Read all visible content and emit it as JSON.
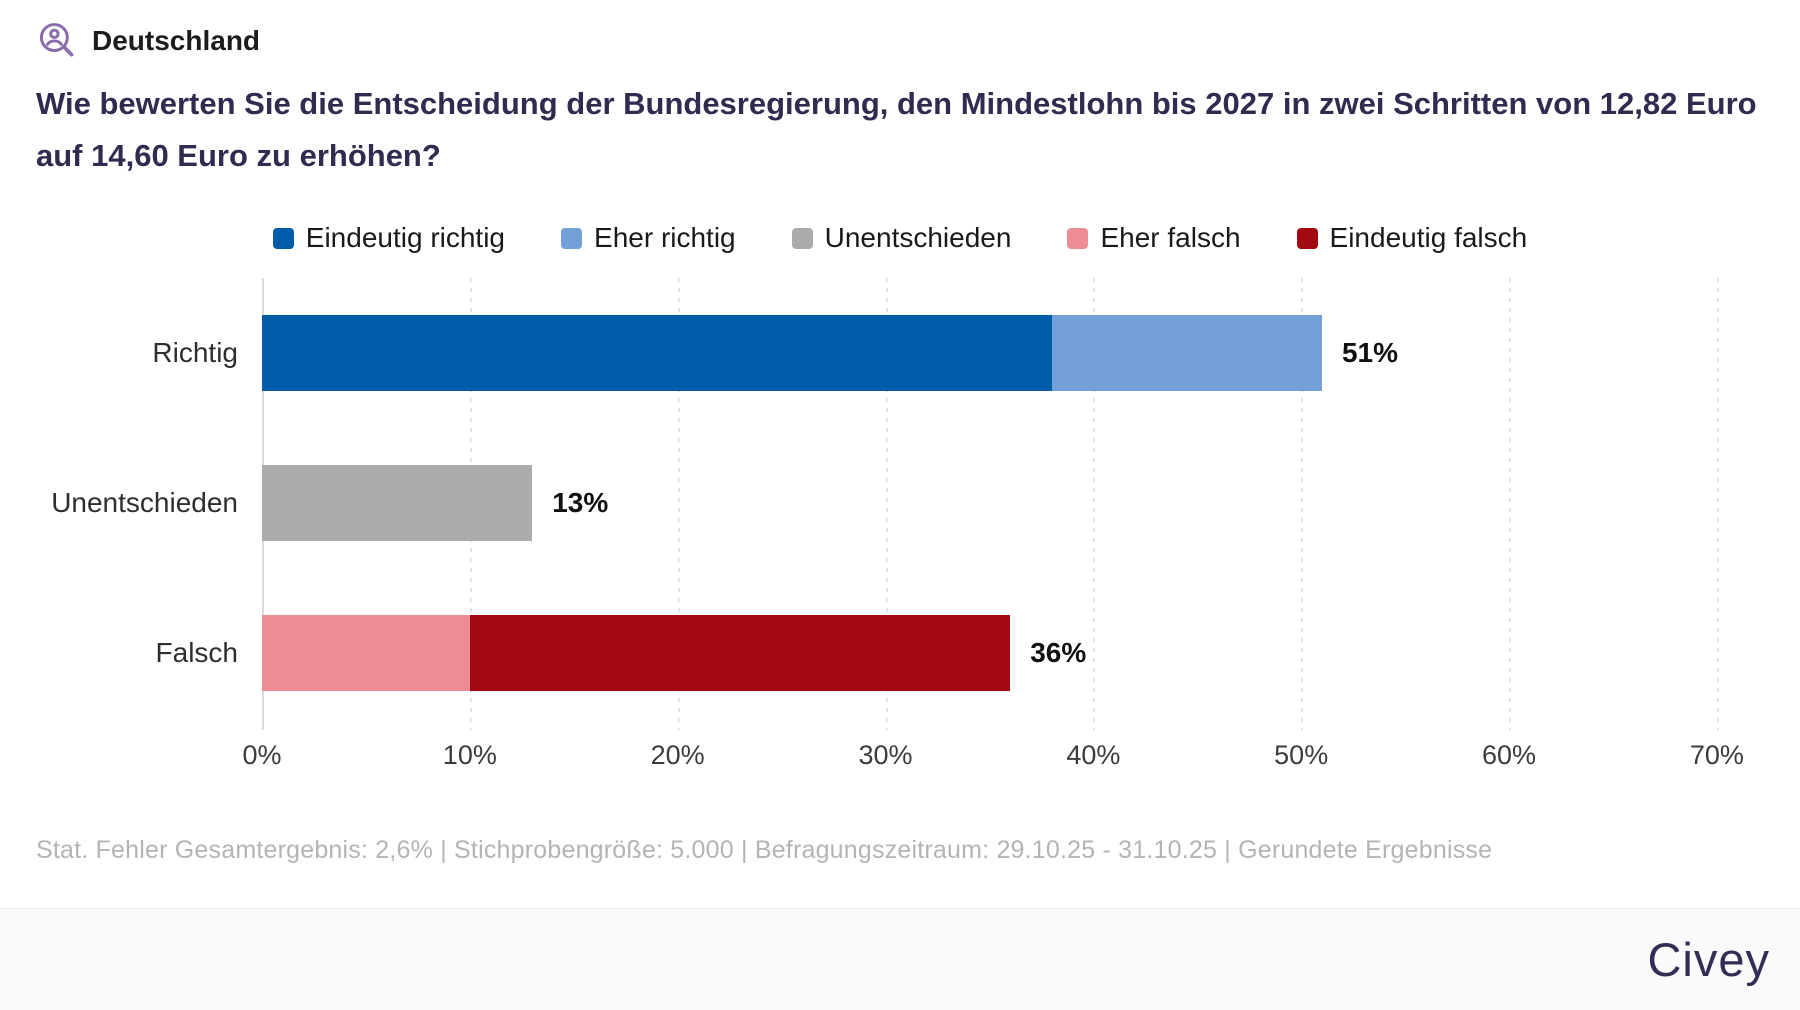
{
  "header": {
    "region_label": "Deutschland"
  },
  "title": {
    "text": "Wie bewerten Sie die Entscheidung der Bundesregierung, den Mindestlohn bis 2027 in zwei Schritten von 12,82 Euro auf 14,60 Euro zu erhöhen?"
  },
  "chart_data": {
    "type": "bar",
    "orientation": "horizontal-stacked",
    "title": "Wie bewerten Sie die Entscheidung der Bundesregierung, den Mindestlohn bis 2027 in zwei Schritten von 12,82 Euro auf 14,60 Euro zu erhöhen?",
    "categories": [
      "Richtig",
      "Unentschieden",
      "Falsch"
    ],
    "series": [
      {
        "name": "Eindeutig richtig",
        "color": "#005CA8",
        "values": [
          38,
          0,
          0
        ]
      },
      {
        "name": "Eher richtig",
        "color": "#72A0D7",
        "values": [
          13,
          0,
          0
        ]
      },
      {
        "name": "Unentschieden",
        "color": "#ABABAB",
        "values": [
          0,
          13,
          0
        ]
      },
      {
        "name": "Eher falsch",
        "color": "#EE8C95",
        "values": [
          0,
          0,
          10
        ]
      },
      {
        "name": "Eindeutig falsch",
        "color": "#A00A10",
        "values": [
          0,
          0,
          26
        ]
      }
    ],
    "totals": [
      "51%",
      "13%",
      "36%"
    ],
    "x_ticks": [
      {
        "value": 0,
        "label": "0%"
      },
      {
        "value": 10,
        "label": "10%"
      },
      {
        "value": 20,
        "label": "20%"
      },
      {
        "value": 30,
        "label": "30%"
      },
      {
        "value": 40,
        "label": "40%"
      },
      {
        "value": 50,
        "label": "50%"
      },
      {
        "value": 60,
        "label": "60%"
      },
      {
        "value": 70,
        "label": "70%"
      }
    ],
    "xlim": [
      0,
      70
    ],
    "axis_display_max": 74,
    "grid": "vertical-dotted",
    "legend_position": "top-center"
  },
  "footer": {
    "note": "Stat. Fehler Gesamtergebnis: 2,6% | Stichprobengröße: 5.000 | Befragungszeitraum: 29.10.25 - 31.10.25 | Gerundete Ergebnisse"
  },
  "brand": {
    "logo_text": "Civey",
    "logo_color": "#342C54",
    "icon_color": "#8A6CAB"
  }
}
